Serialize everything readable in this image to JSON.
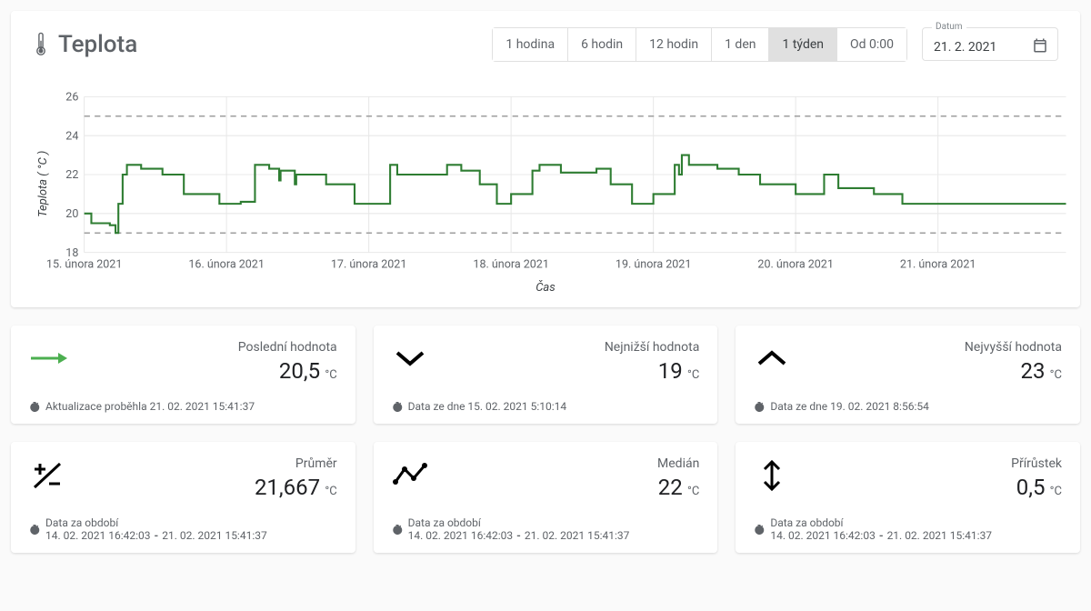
{
  "header": {
    "title": "Teplota",
    "range_buttons": [
      "1 hodina",
      "6 hodin",
      "12 hodin",
      "1 den",
      "1 týden",
      "Od 0:00"
    ],
    "active_range_index": 4,
    "date_label": "Datum",
    "date_value": "21. 2. 2021"
  },
  "chart": {
    "type": "line-step",
    "y_label": "Teplota ( °C )",
    "x_label": "Čas",
    "ylim": [
      18,
      26
    ],
    "yticks": [
      18,
      20,
      22,
      24,
      26
    ],
    "xticks": [
      "15. února 2021",
      "16. února 2021",
      "17. února 2021",
      "18. února 2021",
      "19. února 2021",
      "20. února 2021",
      "21. února 2021"
    ],
    "ref_lines": [
      19,
      25
    ],
    "ref_line_color": "#9e9e9e",
    "grid_color": "#e8e8e8",
    "series_color": "#2e7d32",
    "series_width": 2,
    "background_color": "#ffffff",
    "axis_fontsize": 12,
    "series": [
      [
        0.0,
        20.0
      ],
      [
        0.05,
        20.0
      ],
      [
        0.05,
        19.5
      ],
      [
        0.18,
        19.5
      ],
      [
        0.18,
        19.4
      ],
      [
        0.22,
        19.4
      ],
      [
        0.22,
        19.0
      ],
      [
        0.24,
        19.0
      ],
      [
        0.24,
        20.5
      ],
      [
        0.27,
        20.5
      ],
      [
        0.27,
        22.0
      ],
      [
        0.3,
        22.0
      ],
      [
        0.3,
        22.5
      ],
      [
        0.4,
        22.5
      ],
      [
        0.4,
        22.3
      ],
      [
        0.55,
        22.3
      ],
      [
        0.55,
        22.0
      ],
      [
        0.7,
        22.0
      ],
      [
        0.7,
        21.0
      ],
      [
        0.95,
        21.0
      ],
      [
        0.95,
        20.5
      ],
      [
        1.1,
        20.5
      ],
      [
        1.1,
        20.6
      ],
      [
        1.2,
        20.6
      ],
      [
        1.2,
        22.5
      ],
      [
        1.3,
        22.5
      ],
      [
        1.3,
        22.3
      ],
      [
        1.37,
        22.3
      ],
      [
        1.37,
        21.7
      ],
      [
        1.38,
        21.7
      ],
      [
        1.38,
        22.2
      ],
      [
        1.48,
        22.2
      ],
      [
        1.48,
        21.5
      ],
      [
        1.49,
        21.5
      ],
      [
        1.49,
        22.0
      ],
      [
        1.7,
        22.0
      ],
      [
        1.7,
        21.5
      ],
      [
        1.9,
        21.5
      ],
      [
        1.9,
        20.5
      ],
      [
        2.15,
        20.5
      ],
      [
        2.15,
        22.5
      ],
      [
        2.2,
        22.5
      ],
      [
        2.2,
        22.0
      ],
      [
        2.55,
        22.0
      ],
      [
        2.55,
        22.5
      ],
      [
        2.65,
        22.5
      ],
      [
        2.65,
        22.2
      ],
      [
        2.78,
        22.2
      ],
      [
        2.78,
        21.5
      ],
      [
        2.9,
        21.5
      ],
      [
        2.9,
        20.5
      ],
      [
        3.0,
        20.5
      ],
      [
        3.0,
        21.0
      ],
      [
        3.15,
        21.0
      ],
      [
        3.15,
        22.2
      ],
      [
        3.2,
        22.2
      ],
      [
        3.2,
        22.5
      ],
      [
        3.35,
        22.5
      ],
      [
        3.35,
        22.1
      ],
      [
        3.6,
        22.1
      ],
      [
        3.6,
        22.3
      ],
      [
        3.7,
        22.3
      ],
      [
        3.7,
        21.5
      ],
      [
        3.85,
        21.5
      ],
      [
        3.85,
        20.5
      ],
      [
        4.0,
        20.5
      ],
      [
        4.0,
        21.0
      ],
      [
        4.15,
        21.0
      ],
      [
        4.15,
        22.5
      ],
      [
        4.18,
        22.5
      ],
      [
        4.18,
        22.0
      ],
      [
        4.2,
        22.0
      ],
      [
        4.2,
        23.0
      ],
      [
        4.25,
        23.0
      ],
      [
        4.25,
        22.5
      ],
      [
        4.45,
        22.5
      ],
      [
        4.45,
        22.3
      ],
      [
        4.6,
        22.3
      ],
      [
        4.6,
        22.0
      ],
      [
        4.75,
        22.0
      ],
      [
        4.75,
        21.5
      ],
      [
        5.0,
        21.5
      ],
      [
        5.0,
        21.0
      ],
      [
        5.2,
        21.0
      ],
      [
        5.2,
        22.0
      ],
      [
        5.3,
        22.0
      ],
      [
        5.3,
        21.3
      ],
      [
        5.55,
        21.3
      ],
      [
        5.55,
        21.0
      ],
      [
        5.75,
        21.0
      ],
      [
        5.75,
        20.5
      ],
      [
        6.9,
        20.5
      ]
    ]
  },
  "stats": [
    {
      "icon": "arrow-right",
      "icon_color": "#4caf50",
      "label": "Poslední hodnota",
      "value": "20,5",
      "unit": "°C",
      "foot_prefix": "Aktualizace proběhla ",
      "foot_a": "21. 02. 2021 15:41:37"
    },
    {
      "icon": "chevron-down",
      "icon_color": "#000000",
      "label": "Nejnižší hodnota",
      "value": "19",
      "unit": "°C",
      "foot_prefix": "Data ze dne ",
      "foot_a": "15. 02. 2021 5:10:14"
    },
    {
      "icon": "chevron-up",
      "icon_color": "#000000",
      "label": "Nejvyšší hodnota",
      "value": "23",
      "unit": "°C",
      "foot_prefix": "Data ze dne ",
      "foot_a": "19. 02. 2021 8:56:54"
    },
    {
      "icon": "plus-minus",
      "icon_color": "#000000",
      "label": "Průměr",
      "value": "21,667",
      "unit": "°C",
      "foot_prefix": "Data za období",
      "foot_a": "14. 02. 2021 16:42:03",
      "foot_b": "21. 02. 2021 15:41:37"
    },
    {
      "icon": "trend",
      "icon_color": "#000000",
      "label": "Medián",
      "value": "22",
      "unit": "°C",
      "foot_prefix": "Data za období",
      "foot_a": "14. 02. 2021 16:42:03",
      "foot_b": "21. 02. 2021 15:41:37"
    },
    {
      "icon": "updown-arrow",
      "icon_color": "#000000",
      "label": "Přírůstek",
      "value": "0,5",
      "unit": "°C",
      "foot_prefix": "Data za období",
      "foot_a": "14. 02. 2021 16:42:03",
      "foot_b": "21. 02. 2021 15:41:37"
    }
  ]
}
